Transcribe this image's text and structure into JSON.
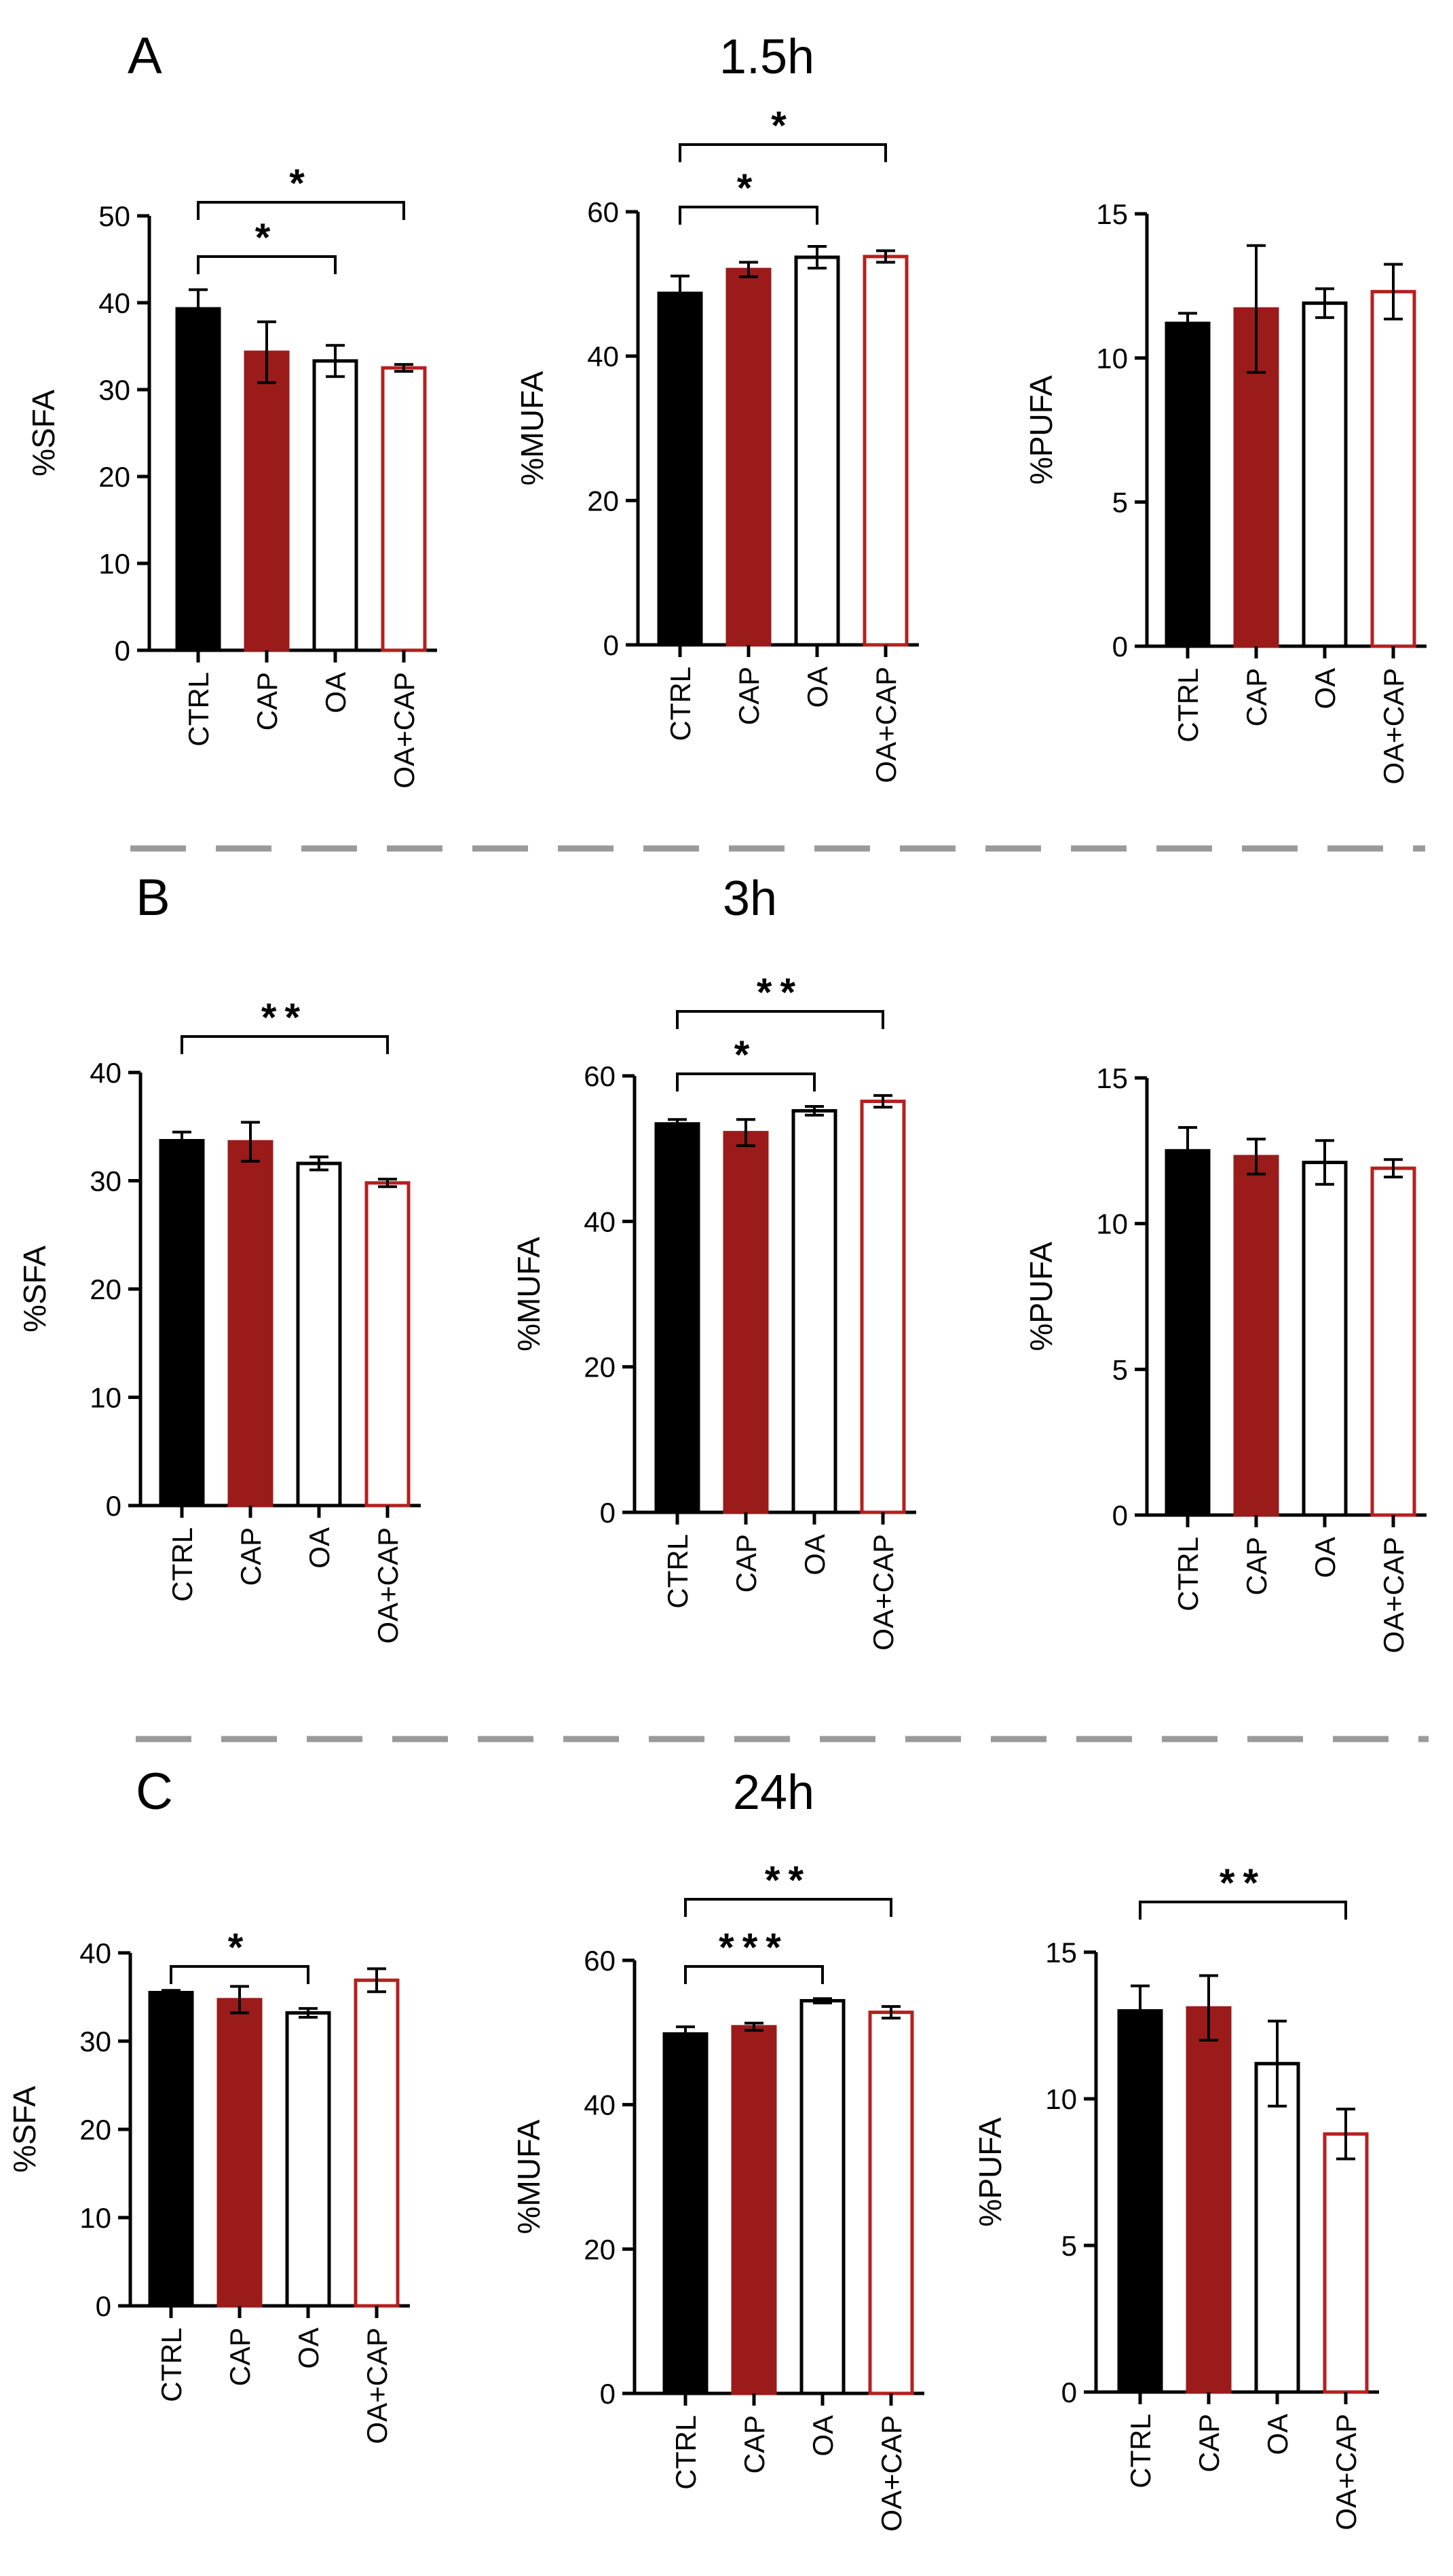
{
  "colors": {
    "ctrl": "#000000",
    "cap": "#9b1b1b",
    "oa": "#ffffff",
    "oacap_edge": "#b52020",
    "divider": "#9a9a9a"
  },
  "chart_data": [
    {
      "panel": "A",
      "panel_title": "1.5h",
      "type": "bar",
      "ylabel": "%SFA",
      "ylim": [
        0,
        50
      ],
      "yticks": [
        "0",
        "10",
        "20",
        "30",
        "40",
        "50"
      ],
      "categories": [
        "CTRL",
        "CAP",
        "OA",
        "OA+CAP"
      ],
      "values": [
        39.3,
        34.3,
        33.3,
        32.5
      ],
      "errors": [
        2.2,
        3.5,
        1.8,
        0.4
      ],
      "significance": [
        {
          "from": 0,
          "to": 2,
          "label": "*"
        },
        {
          "from": 0,
          "to": 3,
          "label": "*"
        }
      ]
    },
    {
      "panel": "A",
      "type": "bar",
      "ylabel": "%MUFA",
      "ylim": [
        0,
        60
      ],
      "yticks": [
        "0",
        "20",
        "40",
        "60"
      ],
      "categories": [
        "CTRL",
        "CAP",
        "OA",
        "OA+CAP"
      ],
      "values": [
        48.7,
        52.0,
        53.7,
        53.8
      ],
      "errors": [
        2.4,
        1.0,
        1.5,
        0.8
      ],
      "significance": [
        {
          "from": 0,
          "to": 2,
          "label": "*"
        },
        {
          "from": 0,
          "to": 3,
          "label": "*"
        }
      ]
    },
    {
      "panel": "A",
      "type": "bar",
      "ylabel": "%PUFA",
      "ylim": [
        0,
        15
      ],
      "yticks": [
        "0",
        "5",
        "10",
        "15"
      ],
      "categories": [
        "CTRL",
        "CAP",
        "OA",
        "OA+CAP"
      ],
      "values": [
        11.2,
        11.7,
        11.9,
        12.3
      ],
      "errors": [
        0.35,
        2.2,
        0.5,
        0.95
      ],
      "significance": []
    },
    {
      "panel": "B",
      "panel_title": "3h",
      "type": "bar",
      "ylabel": "%SFA",
      "ylim": [
        0,
        40
      ],
      "yticks": [
        "0",
        "10",
        "20",
        "30",
        "40"
      ],
      "categories": [
        "CTRL",
        "CAP",
        "OA",
        "OA+CAP"
      ],
      "values": [
        33.7,
        33.6,
        31.6,
        29.8
      ],
      "errors": [
        0.8,
        1.8,
        0.6,
        0.35
      ],
      "significance": [
        {
          "from": 0,
          "to": 3,
          "label": "**"
        }
      ]
    },
    {
      "panel": "B",
      "type": "bar",
      "ylabel": "%MUFA",
      "ylim": [
        0,
        60
      ],
      "yticks": [
        "0",
        "20",
        "40",
        "60"
      ],
      "categories": [
        "CTRL",
        "CAP",
        "OA",
        "OA+CAP"
      ],
      "values": [
        53.4,
        52.2,
        55.2,
        56.5
      ],
      "errors": [
        0.6,
        1.8,
        0.6,
        0.8
      ],
      "significance": [
        {
          "from": 0,
          "to": 2,
          "label": "*"
        },
        {
          "from": 0,
          "to": 3,
          "label": "**"
        }
      ]
    },
    {
      "panel": "B",
      "type": "bar",
      "ylabel": "%PUFA",
      "ylim": [
        0,
        15
      ],
      "yticks": [
        "0",
        "5",
        "10",
        "15"
      ],
      "categories": [
        "CTRL",
        "CAP",
        "OA",
        "OA+CAP"
      ],
      "values": [
        12.5,
        12.3,
        12.1,
        11.9
      ],
      "errors": [
        0.8,
        0.6,
        0.75,
        0.3
      ],
      "significance": []
    },
    {
      "panel": "C",
      "panel_title": "24h",
      "type": "bar",
      "ylabel": "%SFA",
      "ylim": [
        0,
        40
      ],
      "yticks": [
        "0",
        "10",
        "20",
        "30",
        "40"
      ],
      "categories": [
        "CTRL",
        "CAP",
        "OA",
        "OA+CAP"
      ],
      "values": [
        35.5,
        34.7,
        33.2,
        36.9
      ],
      "errors": [
        0.25,
        1.5,
        0.5,
        1.3
      ],
      "significance": [
        {
          "from": 0,
          "to": 2,
          "label": "*"
        }
      ]
    },
    {
      "panel": "C",
      "type": "bar",
      "ylabel": "%MUFA",
      "ylim": [
        0,
        60
      ],
      "yticks": [
        "0",
        "20",
        "40",
        "60"
      ],
      "categories": [
        "CTRL",
        "CAP",
        "OA",
        "OA+CAP"
      ],
      "values": [
        49.8,
        50.8,
        54.4,
        52.8
      ],
      "errors": [
        1.0,
        0.5,
        0.3,
        0.8
      ],
      "significance": [
        {
          "from": 0,
          "to": 2,
          "label": "***"
        },
        {
          "from": 0,
          "to": 3,
          "label": "**"
        }
      ]
    },
    {
      "panel": "C",
      "type": "bar",
      "ylabel": "%PUFA",
      "ylim": [
        0,
        15
      ],
      "yticks": [
        "0",
        "5",
        "10",
        "15"
      ],
      "categories": [
        "CTRL",
        "CAP",
        "OA",
        "OA+CAP"
      ],
      "values": [
        13.0,
        13.1,
        11.2,
        8.8
      ],
      "errors": [
        0.85,
        1.1,
        1.45,
        0.85
      ],
      "significance": [
        {
          "from": 0,
          "to": 3,
          "label": "**"
        }
      ]
    }
  ]
}
